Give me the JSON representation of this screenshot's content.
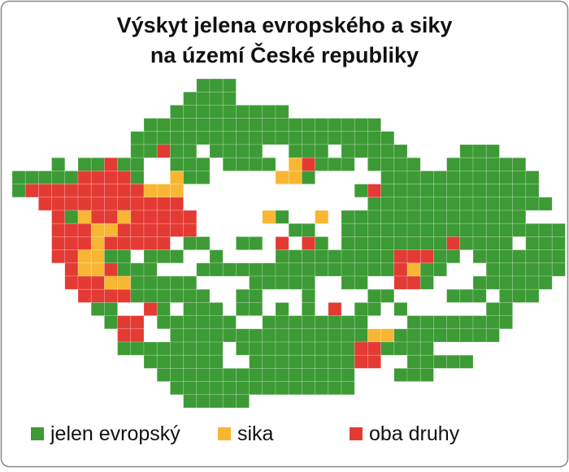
{
  "title_lines": [
    "Výskyt jelena evropského a siky",
    "na území České republiky"
  ],
  "legend": [
    {
      "label": "jelen evropský",
      "color": "#3d9b35"
    },
    {
      "label": "sika",
      "color": "#f9b633"
    },
    {
      "label": "oba druhy",
      "color": "#e43a34"
    }
  ]
}
